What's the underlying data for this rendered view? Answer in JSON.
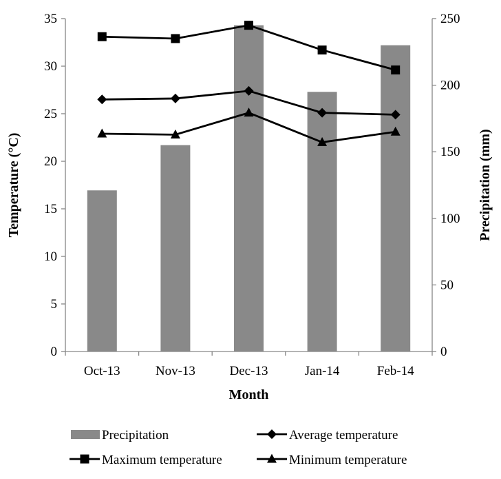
{
  "chart_data": {
    "type": "bar+line",
    "categories": [
      "Oct-13",
      "Nov-13",
      "Dec-13",
      "Jan-14",
      "Feb-14"
    ],
    "xlabel": "Month",
    "ylabel_left": "Temperature (°C)",
    "ylabel_right": "Precipitation (mm)",
    "ylim_left": [
      0,
      35
    ],
    "yticks_left": [
      0,
      5,
      10,
      15,
      20,
      25,
      30,
      35
    ],
    "ylim_right": [
      0,
      250
    ],
    "yticks_right": [
      0,
      50,
      100,
      150,
      200,
      250
    ],
    "grid": false,
    "legend_position": "bottom",
    "bars": {
      "name": "Precipitation",
      "axis": "right",
      "color": "#898989",
      "values": [
        121,
        155,
        245,
        195,
        230
      ]
    },
    "series": [
      {
        "name": "Average temperature",
        "marker": "diamond",
        "axis": "left",
        "color": "#000000",
        "values": [
          26.5,
          26.6,
          27.4,
          25.1,
          24.9
        ]
      },
      {
        "name": "Maximum temperature",
        "marker": "square",
        "axis": "left",
        "color": "#000000",
        "values": [
          33.1,
          32.9,
          34.3,
          31.7,
          29.6
        ]
      },
      {
        "name": "Minimum temperature",
        "marker": "triangle",
        "axis": "left",
        "color": "#000000",
        "values": [
          22.9,
          22.8,
          25.1,
          22.0,
          23.1
        ]
      }
    ],
    "legend": [
      "Precipitation",
      "Average temperature",
      "Maximum temperature",
      "Minimum temperature"
    ]
  }
}
